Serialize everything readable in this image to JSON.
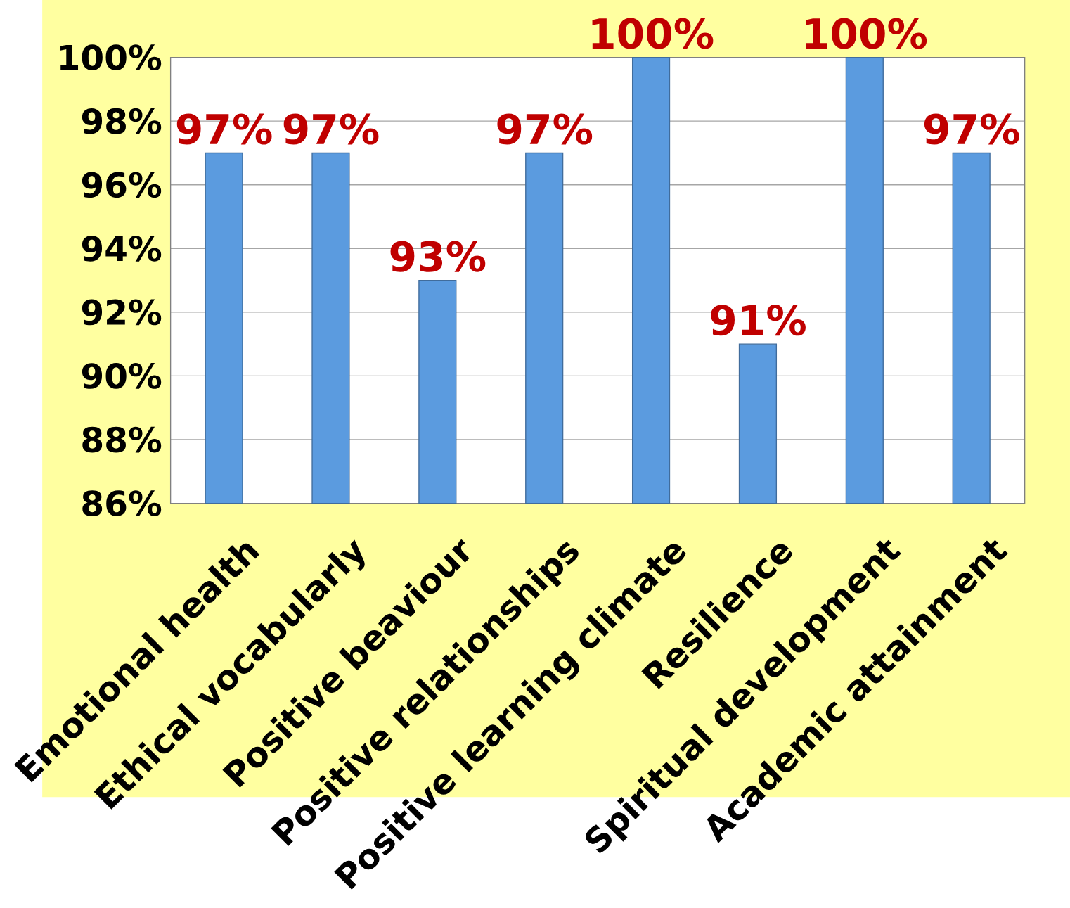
{
  "chart_data": {
    "type": "bar",
    "categories": [
      "Emotional health",
      "Ethical vocabularly",
      "Positive beaviour",
      "Positive relationships",
      "Positive learning climate",
      "Resilience",
      "Spiritual development",
      "Academic attainment"
    ],
    "values": [
      97,
      97,
      93,
      97,
      100,
      91,
      100,
      97
    ],
    "value_labels": [
      "97%",
      "97%",
      "93%",
      "97%",
      "100%",
      "91%",
      "100%",
      "97%"
    ],
    "color": "#5b9bdf",
    "ylim": [
      86,
      100
    ],
    "yticks": [
      {
        "value": 86,
        "label": "86%"
      },
      {
        "value": 88,
        "label": "88%"
      },
      {
        "value": 90,
        "label": "90%"
      },
      {
        "value": 92,
        "label": "92%"
      },
      {
        "value": 94,
        "label": "94%"
      },
      {
        "value": 96,
        "label": "96%"
      },
      {
        "value": 98,
        "label": "98%"
      },
      {
        "value": 100,
        "label": "100%"
      }
    ],
    "grid": "y"
  }
}
